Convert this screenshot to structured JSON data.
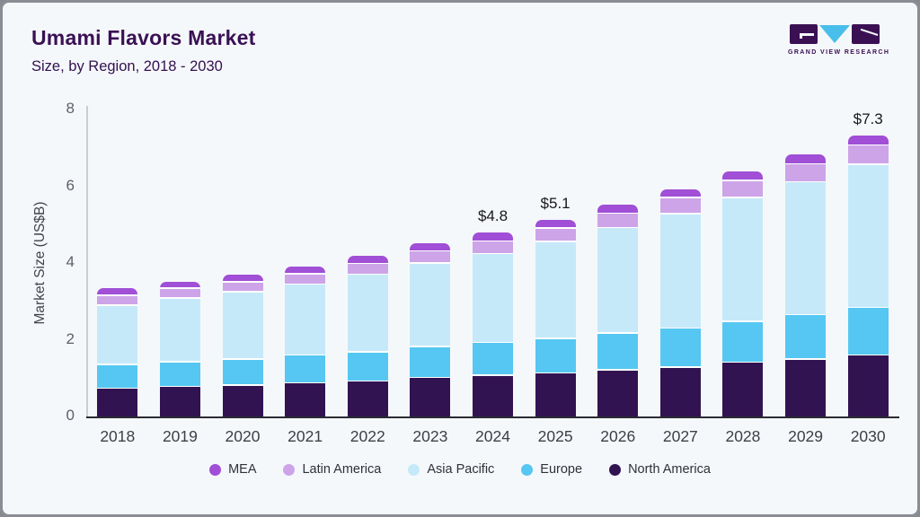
{
  "header": {
    "title": "Umami Flavors Market",
    "subtitle": "Size, by Region, 2018 - 2030"
  },
  "logo": {
    "caption": "GRAND VIEW RESEARCH",
    "brand_dark": "#3a1053",
    "brand_cyan": "#49beea"
  },
  "chart_data": {
    "type": "bar",
    "stacked": true,
    "title": "Umami Flavors Market Size, by Region, 2018 - 2030",
    "xlabel": "",
    "ylabel": "Market Size (US$B)",
    "ylim": [
      0,
      8
    ],
    "yticks": [
      0,
      2,
      4,
      6,
      8
    ],
    "grid": false,
    "legend_position": "bottom",
    "categories": [
      "2018",
      "2019",
      "2020",
      "2021",
      "2022",
      "2023",
      "2024",
      "2025",
      "2026",
      "2027",
      "2028",
      "2029",
      "2030"
    ],
    "series": [
      {
        "name": "North America",
        "color": "#321352",
        "values": [
          0.76,
          0.8,
          0.84,
          0.9,
          0.94,
          1.04,
          1.09,
          1.15,
          1.23,
          1.31,
          1.43,
          1.52,
          1.62
        ]
      },
      {
        "name": "Europe",
        "color": "#55c7f2",
        "values": [
          0.62,
          0.65,
          0.68,
          0.72,
          0.76,
          0.8,
          0.86,
          0.9,
          0.96,
          1.01,
          1.07,
          1.15,
          1.24
        ]
      },
      {
        "name": "Asia Pacific",
        "color": "#c5e9f9",
        "values": [
          1.54,
          1.66,
          1.75,
          1.85,
          2.02,
          2.18,
          2.31,
          2.53,
          2.75,
          2.99,
          3.23,
          3.46,
          3.73
        ]
      },
      {
        "name": "Latin America",
        "color": "#cda4e8",
        "values": [
          0.26,
          0.25,
          0.26,
          0.27,
          0.29,
          0.31,
          0.33,
          0.35,
          0.38,
          0.41,
          0.44,
          0.47,
          0.5
        ]
      },
      {
        "name": "MEA",
        "color": "#a04fd6",
        "values": [
          0.17,
          0.16,
          0.16,
          0.17,
          0.18,
          0.19,
          0.2,
          0.2,
          0.21,
          0.21,
          0.22,
          0.22,
          0.23
        ]
      }
    ],
    "annotations": {
      "2024": "$4.8",
      "2025": "$5.1",
      "2030": "$7.3"
    },
    "legend": [
      "MEA",
      "Latin America",
      "Asia Pacific",
      "Europe",
      "North America"
    ]
  }
}
